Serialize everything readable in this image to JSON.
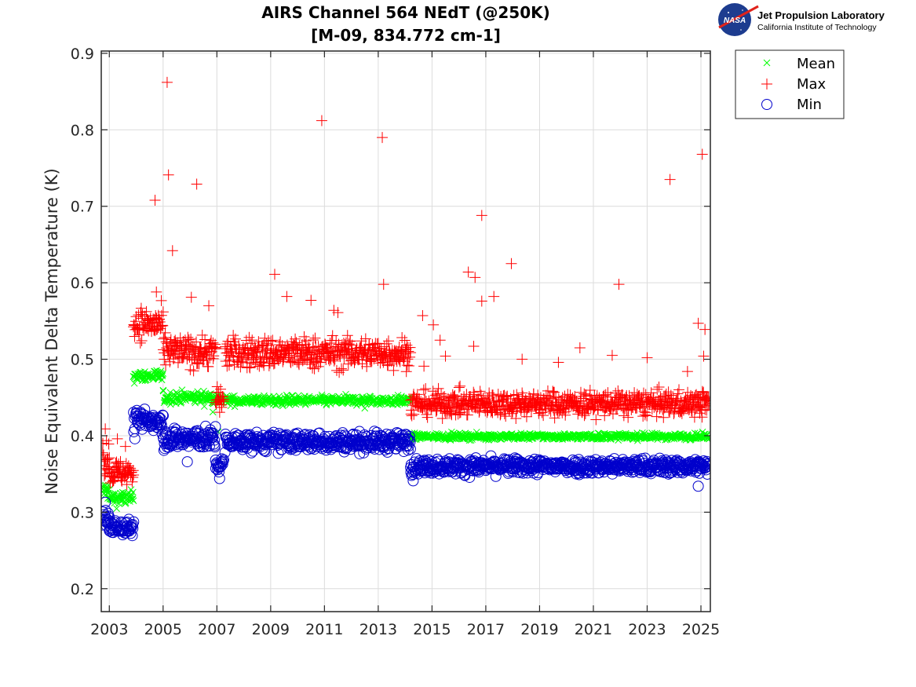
{
  "logo": {
    "org_name": "Jet Propulsion Laboratory",
    "org_subtitle": "California Institute of Technology",
    "badge_text": "NASA"
  },
  "chart_data": {
    "type": "scatter",
    "title": [
      "AIRS Channel 564 NEdT (@250K)",
      "[M-09, 834.772 cm-1]"
    ],
    "xlabel": "",
    "ylabel": "Noise Equivalent Delta Temperature (K)",
    "xlim": [
      2002.7,
      2025.35
    ],
    "ylim": [
      0.17,
      0.903
    ],
    "xticks": [
      2003,
      2005,
      2007,
      2009,
      2011,
      2013,
      2015,
      2017,
      2019,
      2021,
      2023,
      2025
    ],
    "xtick_labels": [
      "2003",
      "2005",
      "2007",
      "2009",
      "2011",
      "2013",
      "2015",
      "2017",
      "2019",
      "2021",
      "2023",
      "2025"
    ],
    "yticks": [
      0.2,
      0.3,
      0.4,
      0.5,
      0.6,
      0.7,
      0.8,
      0.9
    ],
    "ytick_labels": [
      "0.2",
      "0.3",
      "0.4",
      "0.5",
      "0.6",
      "0.7",
      "0.8",
      "0.9"
    ],
    "grid": true,
    "legend_position": "outside-top-right",
    "series": [
      {
        "name": "Mean",
        "marker": "x",
        "color": "#00ff00",
        "segments": [
          {
            "x": [
              2002.75,
              2003.0
            ],
            "y": 0.328,
            "spread": 0.006
          },
          {
            "x": [
              2003.0,
              2003.9
            ],
            "y": 0.318,
            "spread": 0.005
          },
          {
            "x": [
              2003.9,
              2005.0
            ],
            "y": 0.478,
            "spread": 0.004
          },
          {
            "x": [
              2005.0,
              2006.95
            ],
            "y": 0.45,
            "spread": 0.004
          },
          {
            "x": [
              2006.95,
              2007.2
            ],
            "y": 0.448,
            "spread": 0.004
          },
          {
            "x": [
              2007.3,
              2014.2
            ],
            "y": 0.446,
            "spread": 0.003
          },
          {
            "x": [
              2014.2,
              2025.3
            ],
            "y": 0.399,
            "spread": 0.002
          }
        ],
        "outliers": [
          [
            2006.85,
            0.431
          ],
          [
            2007.05,
            0.405
          ],
          [
            2009.2,
            0.44
          ],
          [
            2012.5,
            0.436
          ],
          [
            2021.2,
            0.403
          ],
          [
            2022.9,
            0.403
          ]
        ]
      },
      {
        "name": "Max",
        "marker": "+",
        "color": "#ff0000",
        "segments": [
          {
            "x": [
              2002.75,
              2003.0
            ],
            "y": 0.372,
            "spread": 0.012
          },
          {
            "x": [
              2003.0,
              2003.9
            ],
            "y": 0.352,
            "spread": 0.008
          },
          {
            "x": [
              2003.9,
              2005.0
            ],
            "y": 0.546,
            "spread": 0.01
          },
          {
            "x": [
              2005.0,
              2006.95
            ],
            "y": 0.51,
            "spread": 0.01
          },
          {
            "x": [
              2006.95,
              2007.25
            ],
            "y": 0.448,
            "spread": 0.009
          },
          {
            "x": [
              2007.3,
              2014.2
            ],
            "y": 0.508,
            "spread": 0.01
          },
          {
            "x": [
              2014.2,
              2025.3
            ],
            "y": 0.442,
            "spread": 0.008
          }
        ],
        "outliers": [
          [
            2005.15,
            0.862
          ],
          [
            2005.2,
            0.741
          ],
          [
            2005.35,
            0.642
          ],
          [
            2004.7,
            0.708
          ],
          [
            2006.25,
            0.729
          ],
          [
            2006.05,
            0.581
          ],
          [
            2006.7,
            0.57
          ],
          [
            2004.75,
            0.588
          ],
          [
            2002.85,
            0.409
          ],
          [
            2003.3,
            0.396
          ],
          [
            2003.6,
            0.386
          ],
          [
            2009.15,
            0.611
          ],
          [
            2009.6,
            0.582
          ],
          [
            2010.5,
            0.577
          ],
          [
            2010.9,
            0.812
          ],
          [
            2011.35,
            0.564
          ],
          [
            2011.5,
            0.561
          ],
          [
            2013.15,
            0.79
          ],
          [
            2013.2,
            0.598
          ],
          [
            2014.65,
            0.557
          ],
          [
            2015.05,
            0.545
          ],
          [
            2015.3,
            0.525
          ],
          [
            2015.5,
            0.504
          ],
          [
            2016.35,
            0.614
          ],
          [
            2016.6,
            0.607
          ],
          [
            2016.85,
            0.688
          ],
          [
            2016.85,
            0.576
          ],
          [
            2017.3,
            0.582
          ],
          [
            2017.95,
            0.625
          ],
          [
            2016.55,
            0.517
          ],
          [
            2018.35,
            0.5
          ],
          [
            2019.7,
            0.496
          ],
          [
            2020.5,
            0.515
          ],
          [
            2021.95,
            0.598
          ],
          [
            2021.7,
            0.505
          ],
          [
            2023.85,
            0.735
          ],
          [
            2024.9,
            0.547
          ],
          [
            2025.05,
            0.768
          ],
          [
            2025.15,
            0.539
          ],
          [
            2025.1,
            0.504
          ],
          [
            2024.5,
            0.484
          ],
          [
            2023.0,
            0.502
          ],
          [
            2014.7,
            0.491
          ]
        ]
      },
      {
        "name": "Min",
        "marker": "o",
        "color": "#0000cc",
        "segments": [
          {
            "x": [
              2002.75,
              2003.0
            ],
            "y": 0.292,
            "spread": 0.006
          },
          {
            "x": [
              2003.0,
              2003.9
            ],
            "y": 0.28,
            "spread": 0.005
          },
          {
            "x": [
              2003.9,
              2005.0
            ],
            "y": 0.42,
            "spread": 0.007
          },
          {
            "x": [
              2005.0,
              2006.95
            ],
            "y": 0.396,
            "spread": 0.007
          },
          {
            "x": [
              2006.95,
              2007.25
            ],
            "y": 0.362,
            "spread": 0.006
          },
          {
            "x": [
              2007.3,
              2014.2
            ],
            "y": 0.392,
            "spread": 0.006
          },
          {
            "x": [
              2014.2,
              2025.3
            ],
            "y": 0.36,
            "spread": 0.005
          }
        ],
        "outliers": [
          [
            2002.85,
            0.313
          ],
          [
            2003.95,
            0.396
          ],
          [
            2005.9,
            0.366
          ],
          [
            2007.1,
            0.344
          ],
          [
            2014.3,
            0.341
          ],
          [
            2024.9,
            0.334
          ]
        ]
      }
    ]
  }
}
